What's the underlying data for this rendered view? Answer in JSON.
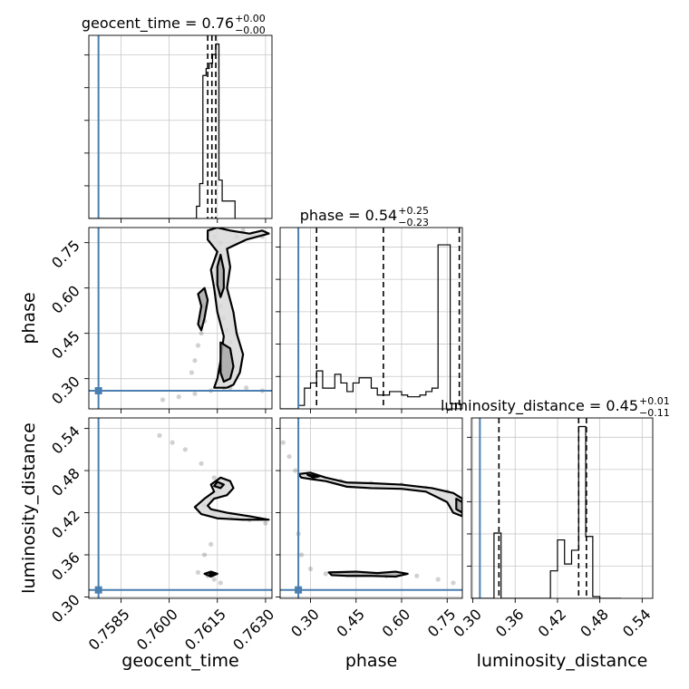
{
  "chart_data": {
    "type": "corner",
    "parameters": [
      "geocent_time",
      "phase",
      "luminosity_distance"
    ],
    "truth_color": "#4a7fb0",
    "truths": {
      "geocent_time": 0.7578,
      "phase": 0.26,
      "luminosity_distance": 0.31
    },
    "titles": [
      {
        "param": "geocent_time",
        "label": "geocent_time = 0.76",
        "plus": "+0.00",
        "minus": "−0.00"
      },
      {
        "param": "phase",
        "label": "phase = 0.54",
        "plus": "+0.25",
        "minus": "−0.23"
      },
      {
        "param": "luminosity_distance",
        "label": "luminosity_distance = 0.45",
        "plus": "+0.01",
        "minus": "−0.11"
      }
    ],
    "ranges": {
      "geocent_time": [
        0.7575,
        0.7632
      ],
      "phase": [
        0.2,
        0.8
      ],
      "luminosity_distance": [
        0.298,
        0.555
      ]
    },
    "ticks": {
      "geocent_time": [
        {
          "v": 0.7585,
          "label": "0.7585"
        },
        {
          "v": 0.76,
          "label": "0.7600"
        },
        {
          "v": 0.7615,
          "label": "0.7615"
        },
        {
          "v": 0.763,
          "label": "0.7630"
        }
      ],
      "phase": [
        {
          "v": 0.3,
          "label": "0.30"
        },
        {
          "v": 0.45,
          "label": "0.45"
        },
        {
          "v": 0.6,
          "label": "0.60"
        },
        {
          "v": 0.75,
          "label": "0.75"
        }
      ],
      "luminosity_distance": [
        {
          "v": 0.3,
          "label": "0.30"
        },
        {
          "v": 0.36,
          "label": "0.36"
        },
        {
          "v": 0.42,
          "label": "0.42"
        },
        {
          "v": 0.48,
          "label": "0.48"
        },
        {
          "v": 0.54,
          "label": "0.54"
        }
      ]
    },
    "quantiles": {
      "geocent_time": [
        0.7612,
        0.76133,
        0.76145
      ],
      "phase": [
        0.32,
        0.54,
        0.79
      ],
      "luminosity_distance": [
        0.337,
        0.45,
        0.461
      ]
    },
    "histograms": {
      "geocent_time": {
        "edges": [
          0.76045,
          0.76055,
          0.76065,
          0.76075,
          0.76085,
          0.76095,
          0.76105,
          0.76115,
          0.76125,
          0.76135,
          0.76145,
          0.76155,
          0.76165,
          0.76175,
          0.76185,
          0.76195,
          0.76205
        ],
        "counts": [
          0,
          0,
          0,
          0,
          0.07,
          0.2,
          0.82,
          0.86,
          0.89,
          0.94,
          1.0,
          0.22,
          0.1,
          0.1,
          0.1,
          0.1
        ],
        "ymax": 1.05
      },
      "phase": {
        "edges": [
          0.2,
          0.22,
          0.24,
          0.26,
          0.28,
          0.3,
          0.32,
          0.34,
          0.36,
          0.38,
          0.4,
          0.42,
          0.44,
          0.46,
          0.48,
          0.5,
          0.52,
          0.54,
          0.56,
          0.58,
          0.6,
          0.62,
          0.64,
          0.66,
          0.68,
          0.7,
          0.72,
          0.74,
          0.76,
          0.78,
          0.8
        ],
        "counts": [
          0.0,
          0.0,
          0.0,
          0.02,
          0.12,
          0.15,
          0.22,
          0.12,
          0.12,
          0.2,
          0.15,
          0.1,
          0.15,
          0.18,
          0.18,
          0.12,
          0.08,
          0.08,
          0.1,
          0.1,
          0.08,
          0.07,
          0.07,
          0.08,
          0.1,
          0.12,
          0.95,
          0.95,
          0.03,
          0.0
        ],
        "ymax": 1.05
      },
      "luminosity_distance": {
        "edges": [
          0.3,
          0.31,
          0.32,
          0.33,
          0.34,
          0.35,
          0.36,
          0.37,
          0.38,
          0.39,
          0.4,
          0.41,
          0.42,
          0.43,
          0.44,
          0.45,
          0.46,
          0.47,
          0.48,
          0.49,
          0.5,
          0.51
        ],
        "counts": [
          0.0,
          0.0,
          0.0,
          0.38,
          0.0,
          0.0,
          0.0,
          0.0,
          0.0,
          0.0,
          0.0,
          0.16,
          0.34,
          0.2,
          0.28,
          1.0,
          0.36,
          0.01,
          0.0,
          0.0,
          0.0
        ],
        "ymax": 1.05
      }
    },
    "panels_2d": [
      {
        "x": "geocent_time",
        "y": "phase",
        "points": [
          [
            0.7613,
            0.79
          ],
          [
            0.7614,
            0.77
          ],
          [
            0.7616,
            0.75
          ],
          [
            0.7615,
            0.71
          ],
          [
            0.7617,
            0.67
          ],
          [
            0.7616,
            0.63
          ],
          [
            0.7615,
            0.58
          ],
          [
            0.7616,
            0.54
          ],
          [
            0.7617,
            0.5
          ],
          [
            0.7618,
            0.46
          ],
          [
            0.7619,
            0.42
          ],
          [
            0.7619,
            0.38
          ],
          [
            0.7618,
            0.34
          ],
          [
            0.7617,
            0.3
          ],
          [
            0.7617,
            0.27
          ],
          [
            0.7611,
            0.59
          ],
          [
            0.76105,
            0.54
          ],
          [
            0.7611,
            0.49
          ],
          [
            0.761,
            0.45
          ],
          [
            0.7609,
            0.41
          ],
          [
            0.7608,
            0.36
          ],
          [
            0.7607,
            0.32
          ],
          [
            0.7621,
            0.77
          ],
          [
            0.7623,
            0.79
          ],
          [
            0.7626,
            0.78
          ],
          [
            0.7629,
            0.77
          ],
          [
            0.7598,
            0.23
          ],
          [
            0.7603,
            0.24
          ],
          [
            0.7608,
            0.25
          ],
          [
            0.7613,
            0.26
          ],
          [
            0.7619,
            0.27
          ],
          [
            0.7624,
            0.27
          ],
          [
            0.7629,
            0.26
          ]
        ],
        "contours": [
          [
            [
              0.7612,
              0.79
            ],
            [
              0.7615,
              0.8
            ],
            [
              0.7619,
              0.79
            ],
            [
              0.7625,
              0.78
            ],
            [
              0.7629,
              0.79
            ],
            [
              0.7631,
              0.78
            ],
            [
              0.7624,
              0.76
            ],
            [
              0.7618,
              0.73
            ],
            [
              0.7619,
              0.67
            ],
            [
              0.7618,
              0.6
            ],
            [
              0.762,
              0.52
            ],
            [
              0.7621,
              0.45
            ],
            [
              0.7623,
              0.38
            ],
            [
              0.7622,
              0.32
            ],
            [
              0.762,
              0.28
            ],
            [
              0.7618,
              0.27
            ],
            [
              0.7614,
              0.27
            ],
            [
              0.7615,
              0.3
            ],
            [
              0.7616,
              0.36
            ],
            [
              0.7617,
              0.44
            ],
            [
              0.7615,
              0.52
            ],
            [
              0.7614,
              0.6
            ],
            [
              0.7613,
              0.66
            ],
            [
              0.7615,
              0.72
            ],
            [
              0.7612,
              0.76
            ]
          ],
          [
            [
              0.7616,
              0.42
            ],
            [
              0.7619,
              0.4
            ],
            [
              0.762,
              0.34
            ],
            [
              0.7619,
              0.3
            ],
            [
              0.7617,
              0.29
            ],
            [
              0.7616,
              0.32
            ],
            [
              0.7616,
              0.37
            ]
          ],
          [
            [
              0.7616,
              0.71
            ],
            [
              0.7617,
              0.66
            ],
            [
              0.7617,
              0.6
            ],
            [
              0.7616,
              0.57
            ],
            [
              0.7615,
              0.61
            ],
            [
              0.7615,
              0.67
            ]
          ],
          [
            [
              0.7611,
              0.6
            ],
            [
              0.7612,
              0.56
            ],
            [
              0.7611,
              0.5
            ],
            [
              0.761,
              0.46
            ],
            [
              0.7609,
              0.48
            ],
            [
              0.761,
              0.54
            ],
            [
              0.7609,
              0.58
            ]
          ]
        ]
      },
      {
        "x": "geocent_time",
        "y": "luminosity_distance",
        "points": [
          [
            0.7597,
            0.53
          ],
          [
            0.7601,
            0.52
          ],
          [
            0.7605,
            0.51
          ],
          [
            0.761,
            0.49
          ],
          [
            0.7614,
            0.47
          ],
          [
            0.7617,
            0.46
          ],
          [
            0.7615,
            0.45
          ],
          [
            0.7613,
            0.44
          ],
          [
            0.7611,
            0.43
          ],
          [
            0.7614,
            0.42
          ],
          [
            0.7619,
            0.415
          ],
          [
            0.7625,
            0.41
          ],
          [
            0.763,
            0.405
          ],
          [
            0.7612,
            0.33
          ],
          [
            0.7614,
            0.325
          ],
          [
            0.7616,
            0.32
          ],
          [
            0.7609,
            0.335
          ],
          [
            0.7611,
            0.36
          ],
          [
            0.7613,
            0.375
          ]
        ],
        "contours": [
          [
            [
              0.7616,
              0.47
            ],
            [
              0.7619,
              0.465
            ],
            [
              0.762,
              0.455
            ],
            [
              0.7618,
              0.445
            ],
            [
              0.7614,
              0.44
            ],
            [
              0.7612,
              0.43
            ],
            [
              0.7613,
              0.425
            ],
            [
              0.7618,
              0.42
            ],
            [
              0.7625,
              0.415
            ],
            [
              0.7631,
              0.41
            ],
            [
              0.7623,
              0.41
            ],
            [
              0.7615,
              0.412
            ],
            [
              0.761,
              0.418
            ],
            [
              0.7608,
              0.428
            ],
            [
              0.7611,
              0.44
            ],
            [
              0.7614,
              0.45
            ],
            [
              0.7613,
              0.46
            ]
          ],
          [
            [
              0.7615,
              0.464
            ],
            [
              0.7617,
              0.46
            ],
            [
              0.7616,
              0.455
            ],
            [
              0.7614,
              0.458
            ]
          ],
          [
            [
              0.7611,
              0.333
            ],
            [
              0.7613,
              0.336
            ],
            [
              0.7615,
              0.333
            ],
            [
              0.7613,
              0.329
            ]
          ],
          [
            [
              0.76125,
              0.334
            ],
            [
              0.7614,
              0.333
            ],
            [
              0.7613,
              0.331
            ]
          ]
        ]
      },
      {
        "x": "phase",
        "y": "luminosity_distance",
        "points": [
          [
            0.21,
            0.52
          ],
          [
            0.23,
            0.5
          ],
          [
            0.25,
            0.48
          ],
          [
            0.3,
            0.47
          ],
          [
            0.4,
            0.465
          ],
          [
            0.5,
            0.462
          ],
          [
            0.6,
            0.46
          ],
          [
            0.68,
            0.455
          ],
          [
            0.75,
            0.45
          ],
          [
            0.78,
            0.44
          ],
          [
            0.79,
            0.425
          ],
          [
            0.26,
            0.39
          ],
          [
            0.27,
            0.36
          ],
          [
            0.3,
            0.34
          ],
          [
            0.35,
            0.333
          ],
          [
            0.45,
            0.332
          ],
          [
            0.55,
            0.33
          ],
          [
            0.65,
            0.33
          ],
          [
            0.72,
            0.325
          ],
          [
            0.77,
            0.32
          ]
        ],
        "contours": [
          [
            [
              0.26,
              0.475
            ],
            [
              0.3,
              0.477
            ],
            [
              0.35,
              0.47
            ],
            [
              0.42,
              0.463
            ],
            [
              0.5,
              0.462
            ],
            [
              0.6,
              0.46
            ],
            [
              0.7,
              0.455
            ],
            [
              0.77,
              0.448
            ],
            [
              0.8,
              0.44
            ],
            [
              0.8,
              0.415
            ],
            [
              0.77,
              0.42
            ],
            [
              0.75,
              0.435
            ],
            [
              0.68,
              0.45
            ],
            [
              0.6,
              0.454
            ],
            [
              0.5,
              0.455
            ],
            [
              0.42,
              0.457
            ],
            [
              0.35,
              0.465
            ],
            [
              0.3,
              0.468
            ],
            [
              0.27,
              0.47
            ]
          ],
          [
            [
              0.29,
              0.474
            ],
            [
              0.33,
              0.472
            ],
            [
              0.31,
              0.47
            ]
          ],
          [
            [
              0.78,
              0.44
            ],
            [
              0.8,
              0.435
            ],
            [
              0.8,
              0.42
            ],
            [
              0.78,
              0.425
            ]
          ],
          [
            [
              0.36,
              0.335
            ],
            [
              0.45,
              0.336
            ],
            [
              0.52,
              0.334
            ],
            [
              0.58,
              0.336
            ],
            [
              0.62,
              0.333
            ],
            [
              0.58,
              0.329
            ],
            [
              0.5,
              0.33
            ],
            [
              0.42,
              0.33
            ],
            [
              0.37,
              0.331
            ]
          ]
        ]
      }
    ],
    "truth_marker_shape": "square"
  }
}
